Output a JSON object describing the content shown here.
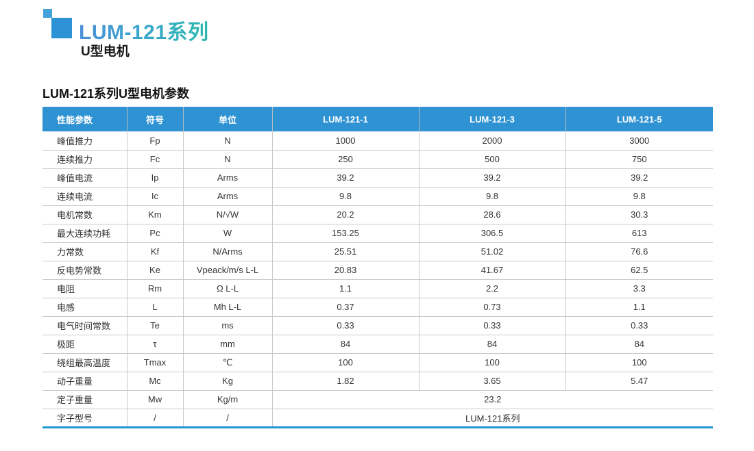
{
  "brand": {
    "title": "LUM-121系列",
    "subtitle": "U型电机"
  },
  "table_title": "LUM-121系列U型电机参数",
  "table": {
    "headers": [
      "性能参数",
      "符号",
      "单位",
      "LUM-121-1",
      "LUM-121-3",
      "LUM-121-5"
    ],
    "rows": [
      {
        "param": "峰值推力",
        "symbol": "Fp",
        "unit": "N",
        "values": [
          "1000",
          "2000",
          "3000"
        ]
      },
      {
        "param": "连续推力",
        "symbol": "Fc",
        "unit": "N",
        "values": [
          "250",
          "500",
          "750"
        ]
      },
      {
        "param": "峰值电流",
        "symbol": "Ip",
        "unit": "Arms",
        "values": [
          "39.2",
          "39.2",
          "39.2"
        ]
      },
      {
        "param": "连续电流",
        "symbol": "Ic",
        "unit": "Arms",
        "values": [
          "9.8",
          "9.8",
          "9.8"
        ]
      },
      {
        "param": "电机常数",
        "symbol": "Km",
        "unit": "N/√W",
        "values": [
          "20.2",
          "28.6",
          "30.3"
        ]
      },
      {
        "param": "最大连续功耗",
        "symbol": "Pc",
        "unit": "W",
        "values": [
          "153.25",
          "306.5",
          "613"
        ]
      },
      {
        "param": "力常数",
        "symbol": "Kf",
        "unit": "N/Arms",
        "values": [
          "25.51",
          "51.02",
          "76.6"
        ]
      },
      {
        "param": "反电势常数",
        "symbol": "Ke",
        "unit": "Vpeack/m/s L-L",
        "values": [
          "20.83",
          "41.67",
          "62.5"
        ]
      },
      {
        "param": "电阻",
        "symbol": "Rm",
        "unit": "Ω L-L",
        "values": [
          "1.1",
          "2.2",
          "3.3"
        ]
      },
      {
        "param": "电感",
        "symbol": "L",
        "unit": "Mh L-L",
        "values": [
          "0.37",
          "0.73",
          "1.1"
        ]
      },
      {
        "param": "电气时间常数",
        "symbol": "Te",
        "unit": "ms",
        "values": [
          "0.33",
          "0.33",
          "0.33"
        ]
      },
      {
        "param": "极距",
        "symbol": "τ",
        "unit": "mm",
        "values": [
          "84",
          "84",
          "84"
        ]
      },
      {
        "param": "绕组最高温度",
        "symbol": "Tmax",
        "unit": "℃",
        "values": [
          "100",
          "100",
          "100"
        ]
      },
      {
        "param": "动子重量",
        "symbol": "Mc",
        "unit": "Kg",
        "values": [
          "1.82",
          "3.65",
          "5.47"
        ]
      },
      {
        "param": "定子重量",
        "symbol": "Mw",
        "unit": "Kg/m",
        "merged": "23.2"
      },
      {
        "param": "字子型号",
        "symbol": "/",
        "unit": "/",
        "merged": "LUM-121系列"
      }
    ]
  },
  "colors": {
    "header_bg": "#2f93d3",
    "logo_small": "#45a3dc",
    "logo_large": "#2e93d6",
    "title_gradient_start": "#4a8fd8",
    "title_gradient_end": "#2bb9ae",
    "bottom_border": "#2196d3",
    "grid_line": "#c9c9c9"
  }
}
